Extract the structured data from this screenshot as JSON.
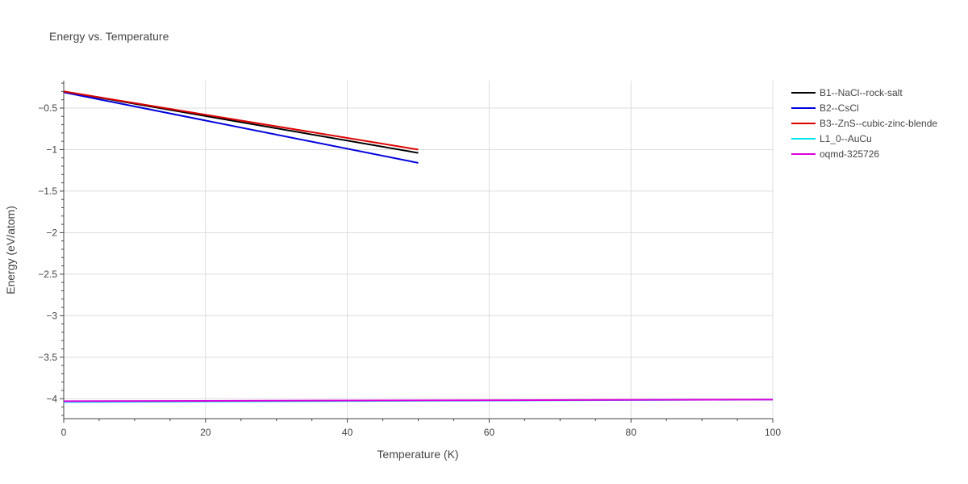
{
  "chart_data": {
    "type": "line",
    "title": "Energy vs. Temperature",
    "xlabel": "Temperature (K)",
    "ylabel": "Energy (eV/atom)",
    "xlim": [
      0,
      100
    ],
    "ylim": [
      -4.24,
      -0.17
    ],
    "xticks": [
      0,
      20,
      40,
      60,
      80,
      100
    ],
    "xtick_labels": [
      "0",
      "20",
      "40",
      "60",
      "80",
      "100"
    ],
    "yticks": [
      -0.5,
      -1,
      -1.5,
      -2,
      -2.5,
      -3,
      -3.5,
      -4
    ],
    "ytick_labels": [
      "−0.5",
      "−1",
      "−1.5",
      "−2",
      "−2.5",
      "−3",
      "−3.5",
      "−4"
    ],
    "grid": true,
    "legend_position": "right",
    "series": [
      {
        "name": "B1--NaCl--rock-salt",
        "color": "#000000",
        "x": [
          0,
          50
        ],
        "y": [
          -0.3,
          -1.04
        ]
      },
      {
        "name": "B2--CsCl",
        "color": "#0000dd",
        "x": [
          0,
          50
        ],
        "y": [
          -0.31,
          -1.16
        ]
      },
      {
        "name": "B3--ZnS--cubic-zinc-blende",
        "color": "#dd0000",
        "x": [
          0,
          50
        ],
        "y": [
          -0.3,
          -1.0
        ]
      },
      {
        "name": "L1_0--AuCu",
        "color": "#00e5ee",
        "x": [
          0,
          100
        ],
        "y": [
          -4.04,
          -4.01
        ]
      },
      {
        "name": "oqmd-325726",
        "color": "#dd00dd",
        "x": [
          0,
          100
        ],
        "y": [
          -4.03,
          -4.01
        ]
      }
    ]
  }
}
